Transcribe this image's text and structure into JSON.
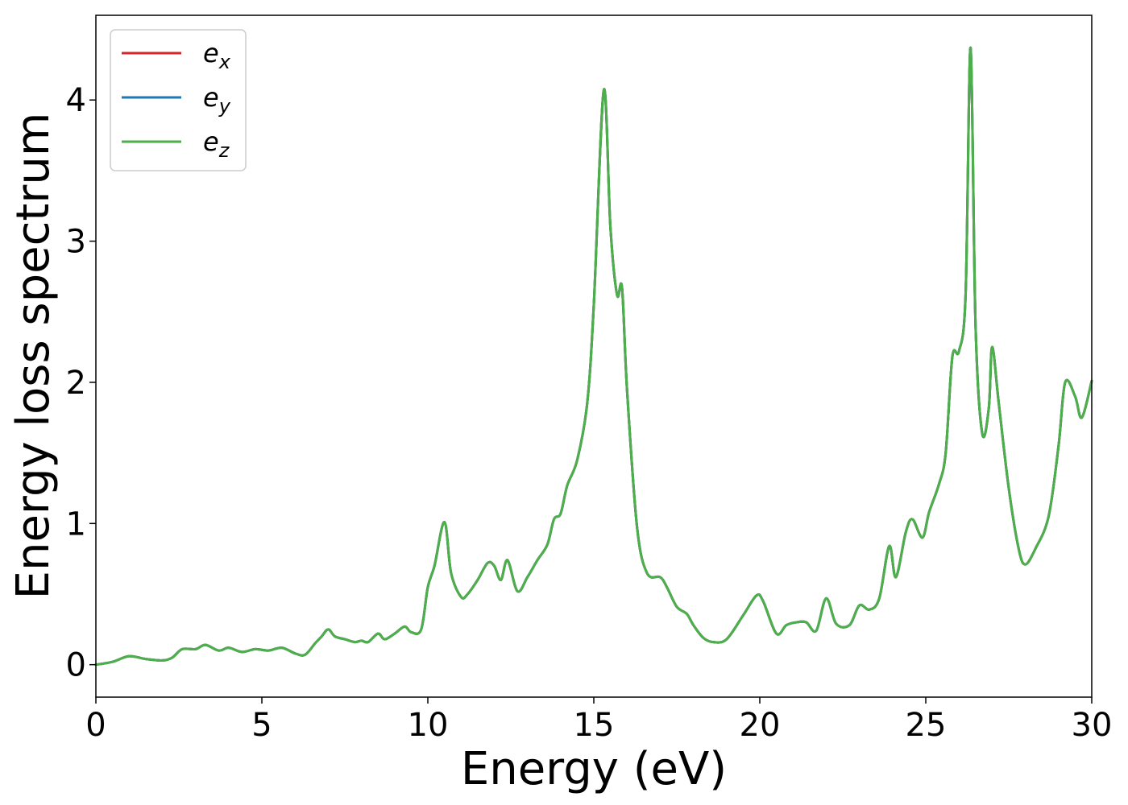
{
  "chart_data": {
    "type": "line",
    "title": "",
    "xlabel": "Energy (eV)",
    "ylabel": "Energy loss spectrum",
    "xlim": [
      0,
      30
    ],
    "ylim": [
      -0.23,
      4.6
    ],
    "xticks": [
      0,
      5,
      10,
      15,
      20,
      25,
      30
    ],
    "yticks": [
      0,
      1,
      2,
      3,
      4
    ],
    "xtick_labels": [
      "0",
      "5",
      "10",
      "15",
      "20",
      "25",
      "30"
    ],
    "ytick_labels": [
      "0",
      "1",
      "2",
      "3",
      "4"
    ],
    "grid": false,
    "legend_position": "top-left",
    "colors": {
      "e_x": "#d62728",
      "e_y": "#1f77b4",
      "e_z": "#4daf4a"
    },
    "x": [
      0,
      0.5,
      1.0,
      1.5,
      2.0,
      2.3,
      2.6,
      3.0,
      3.3,
      3.7,
      4.0,
      4.4,
      4.8,
      5.2,
      5.6,
      6.0,
      6.3,
      6.6,
      6.8,
      7.0,
      7.2,
      7.5,
      7.8,
      8.0,
      8.2,
      8.5,
      8.7,
      9.0,
      9.3,
      9.5,
      9.8,
      10.0,
      10.2,
      10.5,
      10.7,
      11.0,
      11.2,
      11.5,
      11.8,
      12.0,
      12.2,
      12.4,
      12.7,
      13.0,
      13.3,
      13.6,
      13.8,
      14.0,
      14.2,
      14.5,
      14.8,
      15.0,
      15.3,
      15.5,
      15.7,
      15.85,
      16.0,
      16.3,
      16.6,
      17.0,
      17.2,
      17.5,
      17.8,
      18.0,
      18.3,
      18.6,
      19.0,
      19.5,
      19.9,
      20.1,
      20.5,
      20.8,
      21.1,
      21.4,
      21.7,
      22.0,
      22.3,
      22.7,
      23.0,
      23.3,
      23.6,
      23.9,
      24.1,
      24.4,
      24.6,
      24.9,
      25.1,
      25.4,
      25.6,
      25.8,
      26.0,
      26.2,
      26.35,
      26.5,
      26.7,
      26.9,
      27.0,
      27.2,
      27.5,
      27.8,
      28.0,
      28.3,
      28.7,
      29.0,
      29.2,
      29.5,
      29.7,
      30.0
    ],
    "series": [
      {
        "name": "e_x",
        "values": [
          0,
          0.02,
          0.06,
          0.04,
          0.03,
          0.05,
          0.11,
          0.11,
          0.14,
          0.1,
          0.12,
          0.09,
          0.11,
          0.1,
          0.12,
          0.08,
          0.07,
          0.15,
          0.2,
          0.25,
          0.2,
          0.18,
          0.16,
          0.17,
          0.16,
          0.22,
          0.18,
          0.22,
          0.27,
          0.23,
          0.25,
          0.55,
          0.7,
          1.01,
          0.65,
          0.48,
          0.5,
          0.6,
          0.72,
          0.7,
          0.6,
          0.74,
          0.52,
          0.62,
          0.74,
          0.85,
          1.03,
          1.07,
          1.27,
          1.45,
          1.85,
          2.55,
          4.07,
          3.1,
          2.62,
          2.67,
          1.95,
          0.98,
          0.65,
          0.62,
          0.55,
          0.41,
          0.36,
          0.28,
          0.19,
          0.16,
          0.18,
          0.35,
          0.49,
          0.45,
          0.22,
          0.28,
          0.3,
          0.3,
          0.24,
          0.47,
          0.29,
          0.28,
          0.42,
          0.39,
          0.47,
          0.84,
          0.62,
          0.94,
          1.03,
          0.9,
          1.08,
          1.28,
          1.5,
          2.18,
          2.22,
          2.62,
          4.37,
          2.4,
          1.64,
          1.82,
          2.25,
          1.85,
          1.25,
          0.82,
          0.71,
          0.82,
          1.05,
          1.55,
          2.0,
          1.9,
          1.75,
          2.01
        ]
      },
      {
        "name": "e_y",
        "values": [
          0,
          0.02,
          0.06,
          0.04,
          0.03,
          0.05,
          0.11,
          0.11,
          0.14,
          0.1,
          0.12,
          0.09,
          0.11,
          0.1,
          0.12,
          0.08,
          0.07,
          0.15,
          0.2,
          0.25,
          0.2,
          0.18,
          0.16,
          0.17,
          0.16,
          0.22,
          0.18,
          0.22,
          0.27,
          0.23,
          0.25,
          0.55,
          0.7,
          1.01,
          0.65,
          0.48,
          0.5,
          0.6,
          0.72,
          0.7,
          0.6,
          0.74,
          0.52,
          0.62,
          0.74,
          0.85,
          1.03,
          1.07,
          1.27,
          1.45,
          1.85,
          2.55,
          4.07,
          3.1,
          2.62,
          2.67,
          1.95,
          0.98,
          0.65,
          0.62,
          0.55,
          0.41,
          0.36,
          0.28,
          0.19,
          0.16,
          0.18,
          0.35,
          0.49,
          0.45,
          0.22,
          0.28,
          0.3,
          0.3,
          0.24,
          0.47,
          0.29,
          0.28,
          0.42,
          0.39,
          0.47,
          0.84,
          0.62,
          0.94,
          1.03,
          0.9,
          1.08,
          1.28,
          1.5,
          2.18,
          2.22,
          2.62,
          4.37,
          2.4,
          1.64,
          1.82,
          2.25,
          1.85,
          1.25,
          0.82,
          0.71,
          0.82,
          1.05,
          1.55,
          2.0,
          1.9,
          1.75,
          2.01
        ]
      },
      {
        "name": "e_z",
        "values": [
          0,
          0.02,
          0.06,
          0.04,
          0.03,
          0.05,
          0.11,
          0.11,
          0.14,
          0.1,
          0.12,
          0.09,
          0.11,
          0.1,
          0.12,
          0.08,
          0.07,
          0.15,
          0.2,
          0.25,
          0.2,
          0.18,
          0.16,
          0.17,
          0.16,
          0.22,
          0.18,
          0.22,
          0.27,
          0.23,
          0.25,
          0.55,
          0.7,
          1.01,
          0.65,
          0.48,
          0.5,
          0.6,
          0.72,
          0.7,
          0.6,
          0.74,
          0.52,
          0.62,
          0.74,
          0.85,
          1.03,
          1.07,
          1.27,
          1.45,
          1.85,
          2.55,
          4.07,
          3.1,
          2.62,
          2.67,
          1.95,
          0.98,
          0.65,
          0.62,
          0.55,
          0.41,
          0.36,
          0.28,
          0.19,
          0.16,
          0.18,
          0.35,
          0.49,
          0.45,
          0.22,
          0.28,
          0.3,
          0.3,
          0.24,
          0.47,
          0.29,
          0.28,
          0.42,
          0.39,
          0.47,
          0.84,
          0.62,
          0.94,
          1.03,
          0.9,
          1.08,
          1.28,
          1.5,
          2.18,
          2.22,
          2.62,
          4.37,
          2.4,
          1.64,
          1.82,
          2.25,
          1.85,
          1.25,
          0.82,
          0.71,
          0.82,
          1.05,
          1.55,
          2.0,
          1.9,
          1.75,
          2.01
        ]
      }
    ],
    "legend": [
      {
        "key": "e_x",
        "base": "e",
        "sub": "x"
      },
      {
        "key": "e_y",
        "base": "e",
        "sub": "y"
      },
      {
        "key": "e_z",
        "base": "e",
        "sub": "z"
      }
    ]
  }
}
